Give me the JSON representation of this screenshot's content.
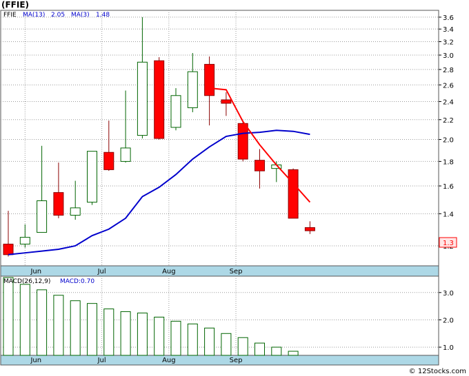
{
  "header": {
    "title": "(FFIE)"
  },
  "footer": {
    "copyright": "© 12Stocks.com"
  },
  "chart_data": [
    {
      "type": "candlestick",
      "legend": {
        "symbol": "FFIE",
        "ma13_label": "MA(13)",
        "ma13_value": "2.05",
        "ma3_label": "MA(3)",
        "ma3_value": "1.48"
      },
      "x_labels": [
        {
          "i": 1,
          "label": "Jun"
        },
        {
          "i": 6,
          "label": "Jul"
        },
        {
          "i": 10,
          "label": "Aug"
        },
        {
          "i": 14,
          "label": "Sep"
        }
      ],
      "y_ticks": [
        "1.2",
        "1.4",
        "1.6",
        "1.8",
        "2.0",
        "2.2",
        "2.4",
        "2.6",
        "2.8",
        "3.0",
        "3.2",
        "3.4",
        "3.6"
      ],
      "ylim": [
        1.09,
        3.72
      ],
      "log_scale": true,
      "last_price": "1.3",
      "candles": [
        {
          "open": 1.21,
          "close": 1.15,
          "high": 1.42,
          "low": 1.14
        },
        {
          "open": 1.21,
          "close": 1.25,
          "high": 1.33,
          "low": 1.19
        },
        {
          "open": 1.28,
          "close": 1.49,
          "high": 1.94,
          "low": 1.28
        },
        {
          "open": 1.55,
          "close": 1.39,
          "high": 1.79,
          "low": 1.37
        },
        {
          "open": 1.39,
          "close": 1.44,
          "high": 1.64,
          "low": 1.36
        },
        {
          "open": 1.48,
          "close": 1.89,
          "high": 1.89,
          "low": 1.46
        },
        {
          "open": 1.88,
          "close": 1.73,
          "high": 2.19,
          "low": 1.72
        },
        {
          "open": 1.8,
          "close": 1.92,
          "high": 2.53,
          "low": 1.79
        },
        {
          "open": 2.04,
          "close": 2.9,
          "high": 3.6,
          "low": 2.01
        },
        {
          "open": 2.92,
          "close": 2.01,
          "high": 2.97,
          "low": 2.0
        },
        {
          "open": 2.12,
          "close": 2.47,
          "high": 2.56,
          "low": 2.09
        },
        {
          "open": 2.33,
          "close": 2.77,
          "high": 3.03,
          "low": 2.28
        },
        {
          "open": 2.87,
          "close": 2.47,
          "high": 2.98,
          "low": 2.14
        },
        {
          "open": 2.42,
          "close": 2.38,
          "high": 2.51,
          "low": 2.24
        },
        {
          "open": 2.16,
          "close": 1.82,
          "high": 2.18,
          "low": 1.8
        },
        {
          "open": 1.81,
          "close": 1.72,
          "high": 1.91,
          "low": 1.58
        },
        {
          "open": 1.74,
          "close": 1.77,
          "high": 1.8,
          "low": 1.63
        },
        {
          "open": 1.73,
          "close": 1.37,
          "high": 1.74,
          "low": 1.37
        },
        {
          "open": 1.31,
          "close": 1.29,
          "high": 1.35,
          "low": 1.27
        }
      ],
      "series": [
        {
          "name": "MA(13)",
          "color": "#0000cc",
          "values": [
            1.15,
            1.16,
            1.17,
            1.18,
            1.2,
            1.26,
            1.3,
            1.37,
            1.52,
            1.59,
            1.69,
            1.82,
            1.93,
            2.03,
            2.06,
            2.07,
            2.09,
            2.08,
            2.05
          ]
        },
        {
          "name": "MA(3)",
          "color": "#ff0000",
          "values": [
            null,
            null,
            null,
            null,
            null,
            null,
            null,
            null,
            null,
            null,
            null,
            null,
            2.56,
            2.54,
            2.18,
            1.95,
            1.77,
            1.62,
            1.48
          ]
        }
      ]
    },
    {
      "type": "bar",
      "legend": {
        "label": "MACD(26,12,9)",
        "value_label": "MACD:0.70"
      },
      "y_ticks": [
        "1.0",
        "2.0",
        "3.0"
      ],
      "ylim": [
        0.7,
        3.6
      ],
      "values": [
        3.55,
        3.3,
        3.1,
        2.9,
        2.7,
        2.6,
        2.4,
        2.3,
        2.25,
        2.1,
        1.95,
        1.85,
        1.7,
        1.5,
        1.35,
        1.15,
        1.0,
        0.85
      ]
    }
  ]
}
